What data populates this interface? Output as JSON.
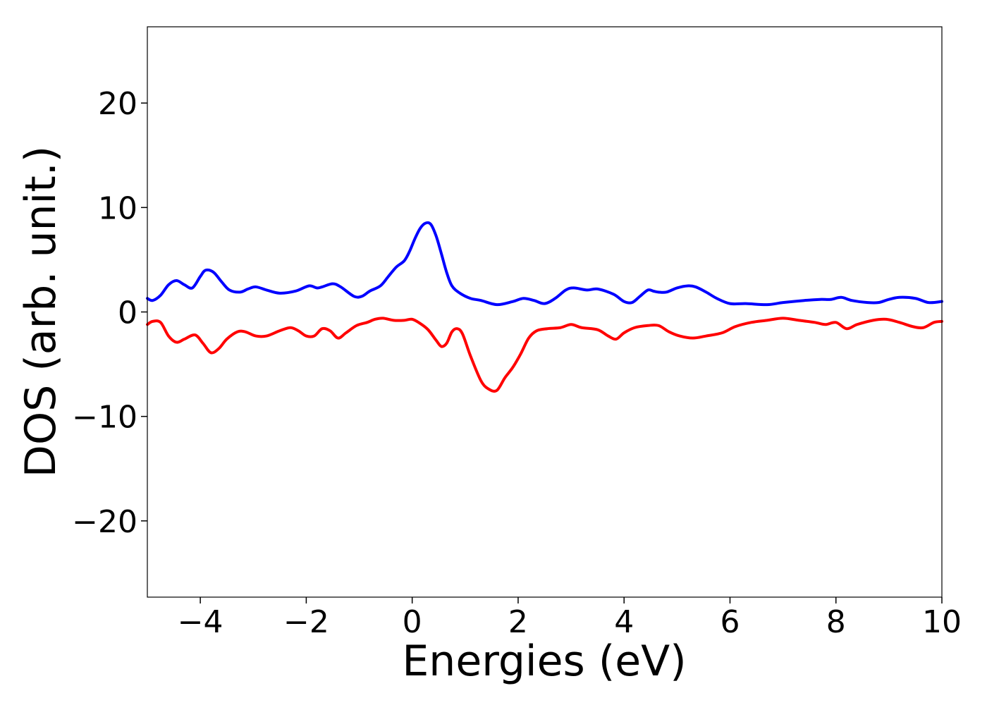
{
  "chart_data": {
    "type": "line",
    "xlabel": "Energies (eV)",
    "ylabel": "DOS (arb. unit.)",
    "xlim": [
      -5,
      10
    ],
    "ylim": [
      -27.3,
      27.3
    ],
    "xticks": [
      -4,
      -2,
      0,
      2,
      4,
      6,
      8,
      10
    ],
    "xtick_labels": [
      "−4",
      "−2",
      "0",
      "2",
      "4",
      "6",
      "8",
      "10"
    ],
    "yticks": [
      -20,
      -10,
      0,
      10,
      20
    ],
    "ytick_labels": [
      "−20",
      "−10",
      "0",
      "10",
      "20"
    ],
    "grid": false,
    "series": [
      {
        "color": "#0000ff",
        "x": [
          -5,
          -4.9,
          -4.75,
          -4.6,
          -4.45,
          -4.3,
          -4.15,
          -4.0,
          -3.9,
          -3.75,
          -3.6,
          -3.45,
          -3.25,
          -3.1,
          -2.95,
          -2.75,
          -2.5,
          -2.2,
          -1.95,
          -1.8,
          -1.7,
          -1.5,
          -1.35,
          -1.1,
          -0.95,
          -0.8,
          -0.6,
          -0.45,
          -0.3,
          -0.15,
          -0.05,
          0.05,
          0.15,
          0.25,
          0.35,
          0.45,
          0.55,
          0.65,
          0.75,
          0.9,
          1.1,
          1.3,
          1.6,
          1.9,
          2.1,
          2.3,
          2.5,
          2.7,
          2.9,
          3.05,
          3.3,
          3.5,
          3.8,
          4.0,
          4.15,
          4.3,
          4.45,
          4.55,
          4.65,
          4.8,
          5.0,
          5.2,
          5.35,
          5.55,
          5.75,
          6.0,
          6.3,
          6.7,
          7.0,
          7.4,
          7.7,
          7.9,
          8.1,
          8.3,
          8.6,
          8.8,
          9.0,
          9.2,
          9.5,
          9.75,
          10.0
        ],
        "y": [
          1.3,
          1.1,
          1.6,
          2.6,
          3.0,
          2.6,
          2.3,
          3.4,
          4.0,
          3.8,
          2.9,
          2.1,
          1.9,
          2.2,
          2.4,
          2.1,
          1.8,
          2.0,
          2.5,
          2.3,
          2.4,
          2.7,
          2.4,
          1.5,
          1.5,
          2.0,
          2.5,
          3.4,
          4.3,
          4.9,
          5.8,
          7.0,
          8.0,
          8.5,
          8.4,
          7.3,
          5.6,
          3.8,
          2.5,
          1.8,
          1.3,
          1.1,
          0.7,
          1.0,
          1.3,
          1.1,
          0.8,
          1.3,
          2.1,
          2.3,
          2.1,
          2.2,
          1.7,
          1.0,
          0.9,
          1.5,
          2.1,
          2.0,
          1.9,
          1.9,
          2.3,
          2.5,
          2.4,
          1.9,
          1.3,
          0.8,
          0.8,
          0.7,
          0.9,
          1.1,
          1.2,
          1.2,
          1.4,
          1.1,
          0.9,
          0.9,
          1.2,
          1.4,
          1.3,
          0.9,
          1.0
        ]
      },
      {
        "color": "#ff0000",
        "x": [
          -5,
          -4.9,
          -4.75,
          -4.6,
          -4.45,
          -4.3,
          -4.1,
          -3.95,
          -3.8,
          -3.65,
          -3.5,
          -3.3,
          -3.15,
          -2.95,
          -2.75,
          -2.5,
          -2.3,
          -2.15,
          -2.0,
          -1.85,
          -1.7,
          -1.55,
          -1.4,
          -1.25,
          -1.05,
          -0.85,
          -0.7,
          -0.55,
          -0.35,
          -0.15,
          0.0,
          0.15,
          0.3,
          0.45,
          0.55,
          0.65,
          0.75,
          0.85,
          0.95,
          1.1,
          1.3,
          1.45,
          1.6,
          1.75,
          1.9,
          2.05,
          2.2,
          2.35,
          2.55,
          2.8,
          3.0,
          3.2,
          3.5,
          3.7,
          3.85,
          4.0,
          4.2,
          4.45,
          4.65,
          4.85,
          5.05,
          5.3,
          5.55,
          5.85,
          6.1,
          6.4,
          6.7,
          7.0,
          7.3,
          7.6,
          7.8,
          8.0,
          8.2,
          8.4,
          8.7,
          8.95,
          9.2,
          9.45,
          9.65,
          9.85,
          10.0
        ],
        "y": [
          -1.2,
          -0.9,
          -1.0,
          -2.3,
          -2.9,
          -2.6,
          -2.2,
          -3.0,
          -3.9,
          -3.5,
          -2.6,
          -1.9,
          -1.9,
          -2.3,
          -2.3,
          -1.8,
          -1.5,
          -1.8,
          -2.3,
          -2.3,
          -1.6,
          -1.8,
          -2.5,
          -2.0,
          -1.3,
          -1.0,
          -0.7,
          -0.6,
          -0.8,
          -0.8,
          -0.7,
          -1.1,
          -1.7,
          -2.7,
          -3.3,
          -3.0,
          -1.9,
          -1.6,
          -2.1,
          -4.2,
          -6.6,
          -7.4,
          -7.5,
          -6.3,
          -5.3,
          -4.0,
          -2.5,
          -1.8,
          -1.6,
          -1.5,
          -1.2,
          -1.5,
          -1.7,
          -2.3,
          -2.6,
          -2.0,
          -1.5,
          -1.3,
          -1.3,
          -1.9,
          -2.3,
          -2.5,
          -2.3,
          -2.0,
          -1.4,
          -1.0,
          -0.8,
          -0.6,
          -0.8,
          -1.0,
          -1.2,
          -1.0,
          -1.6,
          -1.2,
          -0.8,
          -0.7,
          -1.0,
          -1.4,
          -1.5,
          -1.0,
          -0.9
        ]
      }
    ]
  }
}
